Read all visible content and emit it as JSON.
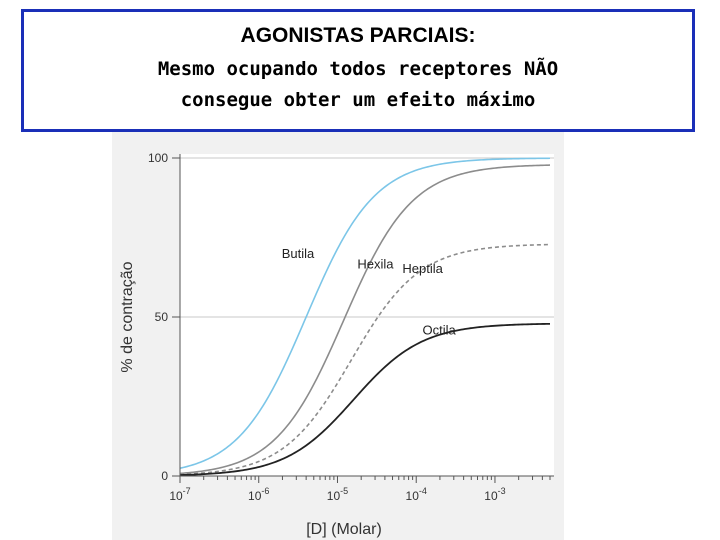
{
  "header": {
    "line1": "AGONISTAS PARCIAIS:",
    "line2": "Mesmo ocupando todos receptores NÃO",
    "line3": "consegue obter um efeito máximo"
  },
  "chart_data": {
    "type": "line",
    "title": "",
    "xlabel": "[D] (Molar)",
    "ylabel": "% de contração",
    "x_scale": "log",
    "xlim": [
      1e-07,
      0.005
    ],
    "ylim": [
      0,
      100
    ],
    "x_ticks": [
      {
        "value": 1e-07,
        "base": "10",
        "exp": "-7"
      },
      {
        "value": 1e-06,
        "base": "10",
        "exp": "-6"
      },
      {
        "value": 1e-05,
        "base": "10",
        "exp": "-5"
      },
      {
        "value": 0.0001,
        "base": "10",
        "exp": "-4"
      },
      {
        "value": 0.001,
        "base": "10",
        "exp": "-3"
      }
    ],
    "y_ticks": [
      "0",
      "50",
      "100"
    ],
    "grid": "horizontal lines at 50 and 100",
    "series": [
      {
        "name": "Butila",
        "color": "#7cc6e8",
        "dash": "solid",
        "emax": 100,
        "ec50": 4e-06,
        "hill": 1.0
      },
      {
        "name": "Hexila",
        "color": "#8c8c8c",
        "dash": "solid",
        "emax": 98,
        "ec50": 1.2e-05,
        "hill": 1.0
      },
      {
        "name": "Heptila",
        "color": "#8c8c8c",
        "dash": "dashed",
        "emax": 73,
        "ec50": 1.5e-05,
        "hill": 1.0
      },
      {
        "name": "Octila",
        "color": "#222222",
        "dash": "solid",
        "emax": 48,
        "ec50": 1.6e-05,
        "hill": 1.0
      }
    ]
  }
}
